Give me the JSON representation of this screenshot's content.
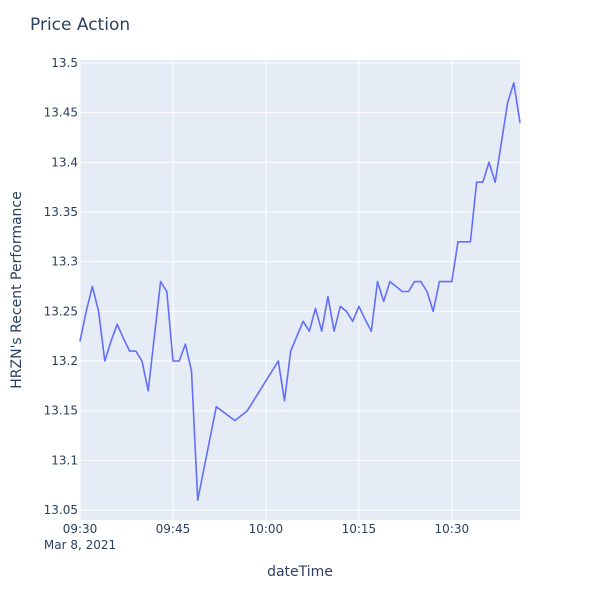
{
  "chart_data": {
    "type": "line",
    "title": "Price Action",
    "xlabel": "dateTime",
    "ylabel": "HRZN's Recent Performance",
    "x_start": "09:30",
    "x_end": "10:41",
    "xticks": [
      "09:30",
      "09:45",
      "10:00",
      "10:15",
      "10:30"
    ],
    "xtick_sublabel": "Mar 8, 2021",
    "yticks": [
      13.05,
      13.1,
      13.15,
      13.2,
      13.25,
      13.3,
      13.35,
      13.4,
      13.45,
      13.5
    ],
    "ylim": [
      13.04,
      13.503
    ],
    "grid": true,
    "colors": {
      "line": "#636efa",
      "plot_bg": "#e5ecf6",
      "grid": "#ffffff",
      "text": "#2a3f5f"
    },
    "series": [
      {
        "x": [
          "09:30",
          "09:31",
          "09:32",
          "09:33",
          "09:34",
          "09:35",
          "09:36",
          "09:37",
          "09:38",
          "09:39",
          "09:40",
          "09:41",
          "09:42",
          "09:43",
          "09:44",
          "09:45",
          "09:46",
          "09:47",
          "09:48",
          "09:49",
          "09:52",
          "09:55",
          "09:57",
          "10:02",
          "10:03",
          "10:04",
          "10:05",
          "10:06",
          "10:07",
          "10:08",
          "10:09",
          "10:10",
          "10:11",
          "10:12",
          "10:13",
          "10:14",
          "10:15",
          "10:16",
          "10:17",
          "10:18",
          "10:19",
          "10:20",
          "10:21",
          "10:22",
          "10:23",
          "10:24",
          "10:25",
          "10:26",
          "10:27",
          "10:28",
          "10:29",
          "10:30",
          "10:31",
          "10:32",
          "10:33",
          "10:34",
          "10:35",
          "10:36",
          "10:37",
          "10:38",
          "10:39",
          "10:40",
          "10:41"
        ],
        "values": [
          13.22,
          13.25,
          13.275,
          13.25,
          13.2,
          13.22,
          13.237,
          13.223,
          13.21,
          13.21,
          13.2,
          13.17,
          13.225,
          13.28,
          13.27,
          13.2,
          13.2,
          13.217,
          13.19,
          13.06,
          13.154,
          13.14,
          13.15,
          13.2,
          13.16,
          13.21,
          13.225,
          13.24,
          13.23,
          13.253,
          13.23,
          13.265,
          13.23,
          13.255,
          13.25,
          13.24,
          13.255,
          13.242,
          13.23,
          13.28,
          13.26,
          13.28,
          13.275,
          13.27,
          13.27,
          13.28,
          13.28,
          13.27,
          13.25,
          13.28,
          13.28,
          13.28,
          13.32,
          13.32,
          13.32,
          13.38,
          13.38,
          13.4,
          13.38,
          13.42,
          13.46,
          13.48,
          13.44
        ]
      }
    ]
  }
}
